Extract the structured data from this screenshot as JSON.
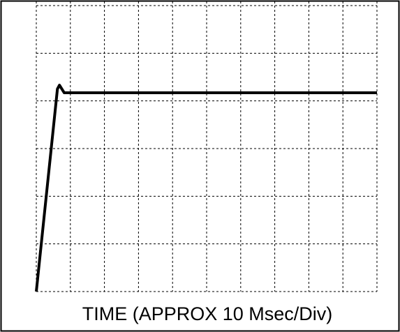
{
  "chart_data": {
    "type": "line",
    "xlabel": "TIME (APPROX 10 Msec/Div)",
    "x": [
      0,
      6.2,
      6.8,
      7.5,
      8.2,
      100
    ],
    "series": [
      {
        "color": "#000000",
        "values": [
          0,
          4.25,
          4.33,
          4.25,
          4.17,
          4.17
        ]
      }
    ],
    "xlim": [
      0,
      100
    ],
    "xticks": [
      0,
      10,
      20,
      30,
      40,
      50,
      60,
      70,
      80,
      90,
      100
    ],
    "ylim": [
      0,
      6
    ],
    "yticks": [
      0,
      1,
      2,
      3,
      4,
      5,
      6
    ],
    "grid": true
  }
}
